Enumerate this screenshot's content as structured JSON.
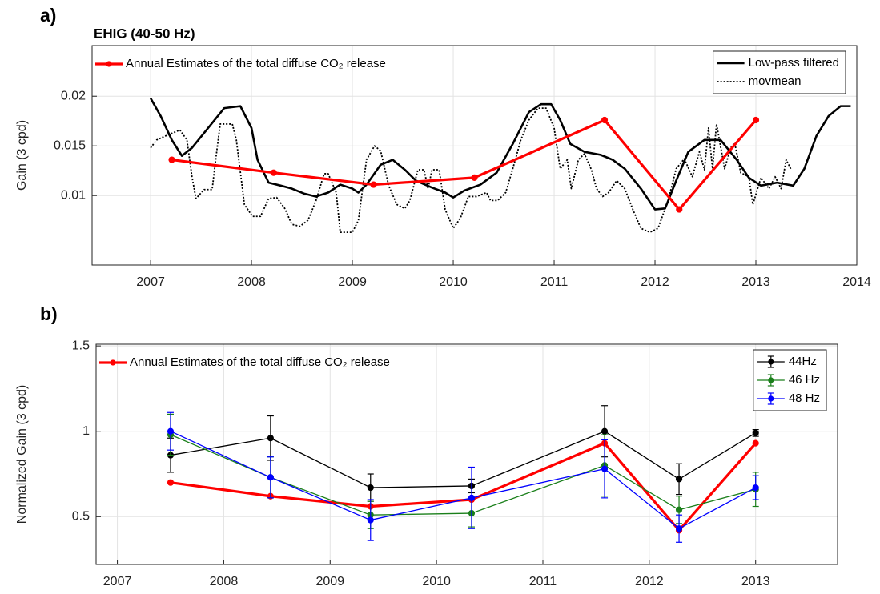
{
  "chart_data": [
    {
      "type": "line",
      "label": "a)",
      "title": "EHIG (40-50 Hz)",
      "ylabel": "Gain (3 cpd)",
      "xlim": [
        2006.42,
        2014.0
      ],
      "ylim": [
        0.003,
        0.0251
      ],
      "xticks": [
        2007,
        2008,
        2009,
        2010,
        2011,
        2012,
        2013,
        2014
      ],
      "yticks": [
        0.01,
        0.015,
        0.02
      ],
      "grid": true,
      "legend": "top-right",
      "series": [
        {
          "name": "Low-pass filtered",
          "color": "#000000",
          "style": "solid",
          "x": [
            2007.0,
            2007.1,
            2007.21,
            2007.31,
            2007.41,
            2007.57,
            2007.73,
            2007.89,
            2008.0,
            2008.06,
            2008.17,
            2008.29,
            2008.4,
            2008.52,
            2008.64,
            2008.76,
            2008.88,
            2009.0,
            2009.06,
            2009.14,
            2009.28,
            2009.4,
            2009.52,
            2009.63,
            2009.79,
            2009.92,
            2010.0,
            2010.11,
            2010.27,
            2010.43,
            2010.59,
            2010.75,
            2010.87,
            2010.97,
            2011.06,
            2011.16,
            2011.3,
            2011.46,
            2011.58,
            2011.7,
            2011.86,
            2012.0,
            2012.1,
            2012.21,
            2012.33,
            2012.49,
            2012.65,
            2012.81,
            2012.93,
            2013.05,
            2013.21,
            2013.37,
            2013.48,
            2013.6,
            2013.72,
            2013.84,
            2013.94
          ],
          "values": [
            0.0198,
            0.018,
            0.0156,
            0.014,
            0.0148,
            0.0168,
            0.0188,
            0.019,
            0.0168,
            0.0136,
            0.0113,
            0.011,
            0.0107,
            0.0102,
            0.0099,
            0.0103,
            0.0111,
            0.0107,
            0.0103,
            0.0111,
            0.0131,
            0.0136,
            0.0126,
            0.0115,
            0.0108,
            0.0103,
            0.0098,
            0.0105,
            0.0111,
            0.0123,
            0.0152,
            0.0184,
            0.0192,
            0.0192,
            0.0176,
            0.0152,
            0.0144,
            0.0141,
            0.0136,
            0.0127,
            0.0107,
            0.0086,
            0.0087,
            0.0115,
            0.0144,
            0.0156,
            0.0156,
            0.0136,
            0.0118,
            0.011,
            0.0113,
            0.011,
            0.0127,
            0.016,
            0.018,
            0.019,
            0.019
          ]
        },
        {
          "name": "movmean",
          "color": "#000000",
          "style": "dotted",
          "x": [
            2007.0,
            2007.06,
            2007.17,
            2007.29,
            2007.36,
            2007.41,
            2007.45,
            2007.53,
            2007.61,
            2007.65,
            2007.69,
            2007.81,
            2007.85,
            2007.93,
            2008.01,
            2008.09,
            2008.17,
            2008.25,
            2008.33,
            2008.4,
            2008.48,
            2008.56,
            2008.64,
            2008.72,
            2008.76,
            2008.84,
            2008.88,
            2009.0,
            2009.06,
            2009.14,
            2009.22,
            2009.28,
            2009.36,
            2009.44,
            2009.52,
            2009.57,
            2009.65,
            2009.71,
            2009.75,
            2009.79,
            2009.86,
            2009.92,
            2010.0,
            2010.07,
            2010.15,
            2010.23,
            2010.33,
            2010.37,
            2010.44,
            2010.52,
            2010.59,
            2010.67,
            2010.75,
            2010.84,
            2010.92,
            2011.0,
            2011.06,
            2011.13,
            2011.17,
            2011.24,
            2011.3,
            2011.37,
            2011.42,
            2011.48,
            2011.54,
            2011.62,
            2011.7,
            2011.78,
            2011.86,
            2011.95,
            2012.03,
            2012.13,
            2012.21,
            2012.29,
            2012.37,
            2012.44,
            2012.49,
            2012.53,
            2012.57,
            2012.61,
            2012.69,
            2012.75,
            2012.79,
            2012.85,
            2012.93,
            2012.97,
            2013.05,
            2013.13,
            2013.19,
            2013.25,
            2013.3,
            2013.35
          ],
          "values": [
            0.0148,
            0.0156,
            0.0161,
            0.0166,
            0.0156,
            0.0119,
            0.0097,
            0.0106,
            0.0106,
            0.014,
            0.0172,
            0.0172,
            0.0156,
            0.0091,
            0.0079,
            0.0079,
            0.0097,
            0.0098,
            0.0087,
            0.0071,
            0.0069,
            0.0075,
            0.0095,
            0.0122,
            0.0122,
            0.0103,
            0.0063,
            0.0063,
            0.0075,
            0.0136,
            0.015,
            0.0145,
            0.011,
            0.0091,
            0.0087,
            0.0095,
            0.0126,
            0.0126,
            0.0107,
            0.0126,
            0.0126,
            0.0086,
            0.0067,
            0.0077,
            0.0099,
            0.0099,
            0.0103,
            0.0095,
            0.0095,
            0.0103,
            0.0127,
            0.0156,
            0.0176,
            0.0188,
            0.0188,
            0.0168,
            0.0127,
            0.0136,
            0.0107,
            0.0136,
            0.0142,
            0.0126,
            0.0107,
            0.0099,
            0.0103,
            0.0115,
            0.0107,
            0.0086,
            0.0067,
            0.0063,
            0.0067,
            0.0095,
            0.0127,
            0.0137,
            0.0119,
            0.0144,
            0.0126,
            0.0168,
            0.0127,
            0.0172,
            0.0127,
            0.0148,
            0.0153,
            0.0123,
            0.0119,
            0.0091,
            0.0118,
            0.0107,
            0.0119,
            0.0107,
            0.0136,
            0.0126
          ]
        },
        {
          "name": "Annual Estimates of the total diffuse CO₂ release",
          "color": "#ff0000",
          "style": "solid",
          "marker": true,
          "legend": "top-left",
          "x": [
            2007.21,
            2008.22,
            2009.21,
            2010.21,
            2011.5,
            2012.24,
            2013.0
          ],
          "values": [
            0.0136,
            0.0123,
            0.0111,
            0.0118,
            0.0176,
            0.0086,
            0.0176
          ]
        }
      ]
    },
    {
      "type": "line",
      "label": "b)",
      "ylabel": "Normalized  Gain (3 cpd)",
      "xlim": [
        2006.8,
        2013.77
      ],
      "ylim": [
        0.22,
        1.51
      ],
      "xticks": [
        2007,
        2008,
        2009,
        2010,
        2011,
        2012,
        2013
      ],
      "yticks": [
        0.5,
        1,
        1.5
      ],
      "grid": true,
      "legend": "top-right",
      "x": [
        2007.5,
        2008.44,
        2009.38,
        2010.33,
        2011.58,
        2012.28,
        2013.0
      ],
      "series": [
        {
          "name": "Annual Estimates of the total diffuse CO₂ release",
          "color": "#ff0000",
          "style": "solid",
          "marker": true,
          "legend": "top-left",
          "values": [
            0.7,
            0.62,
            0.56,
            0.6,
            0.93,
            0.42,
            0.93
          ]
        },
        {
          "name": "44Hz",
          "color": "#000000",
          "style": "solid",
          "marker": true,
          "values": [
            0.86,
            0.96,
            0.67,
            0.68,
            1.0,
            0.72,
            0.99
          ],
          "errors": [
            0.1,
            0.13,
            0.08,
            0.04,
            0.15,
            0.09,
            0.02
          ]
        },
        {
          "name": "46 Hz",
          "color": "#1a7f1a",
          "style": "solid",
          "marker": true,
          "values": [
            0.98,
            0.73,
            0.51,
            0.52,
            0.8,
            0.54,
            0.66
          ],
          "errors": [
            0.12,
            0.12,
            0.08,
            0.08,
            0.18,
            0.08,
            0.1
          ]
        },
        {
          "name": "48 Hz",
          "color": "#0000ff",
          "style": "solid",
          "marker": true,
          "values": [
            1.0,
            0.73,
            0.48,
            0.61,
            0.78,
            0.43,
            0.67
          ],
          "errors": [
            0.11,
            0.12,
            0.12,
            0.18,
            0.17,
            0.08,
            0.07
          ]
        }
      ]
    }
  ]
}
